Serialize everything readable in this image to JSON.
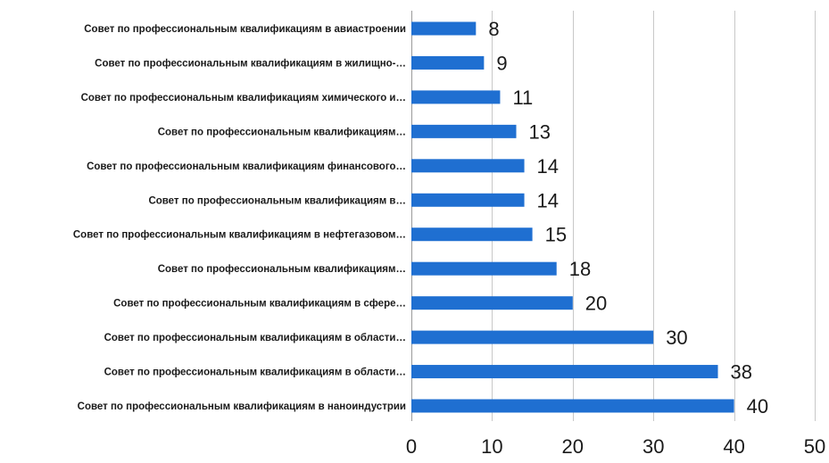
{
  "chart_data": {
    "type": "bar",
    "orientation": "horizontal",
    "title": "",
    "xlabel": "",
    "ylabel": "",
    "xlim": [
      0,
      50
    ],
    "ticks": [
      0,
      10,
      20,
      30,
      40,
      50
    ],
    "grid": true,
    "bar_color": "#1f6fd1",
    "categories": [
      "Совет по профессиональным квалификациям в авиастроении",
      "Совет по профессиональным квалификациям в жилищно-…",
      "Совет по профессиональным квалификациям химического и…",
      "Совет по профессиональным квалификациям…",
      "Совет по профессиональным квалификациям финансового…",
      "Совет по профессиональным квалификациям в…",
      "Совет по профессиональным квалификациям в нефтегазовом…",
      "Совет по профессиональным квалификациям…",
      "Совет по профессиональным квалификациям в сфере…",
      "Совет по профессиональным квалификациям в области…",
      "Совет по профессиональным квалификациям в области…",
      "Совет по профессиональным квалификациям в наноиндустрии"
    ],
    "values": [
      8,
      9,
      11,
      13,
      14,
      14,
      15,
      18,
      20,
      30,
      38,
      40
    ]
  }
}
